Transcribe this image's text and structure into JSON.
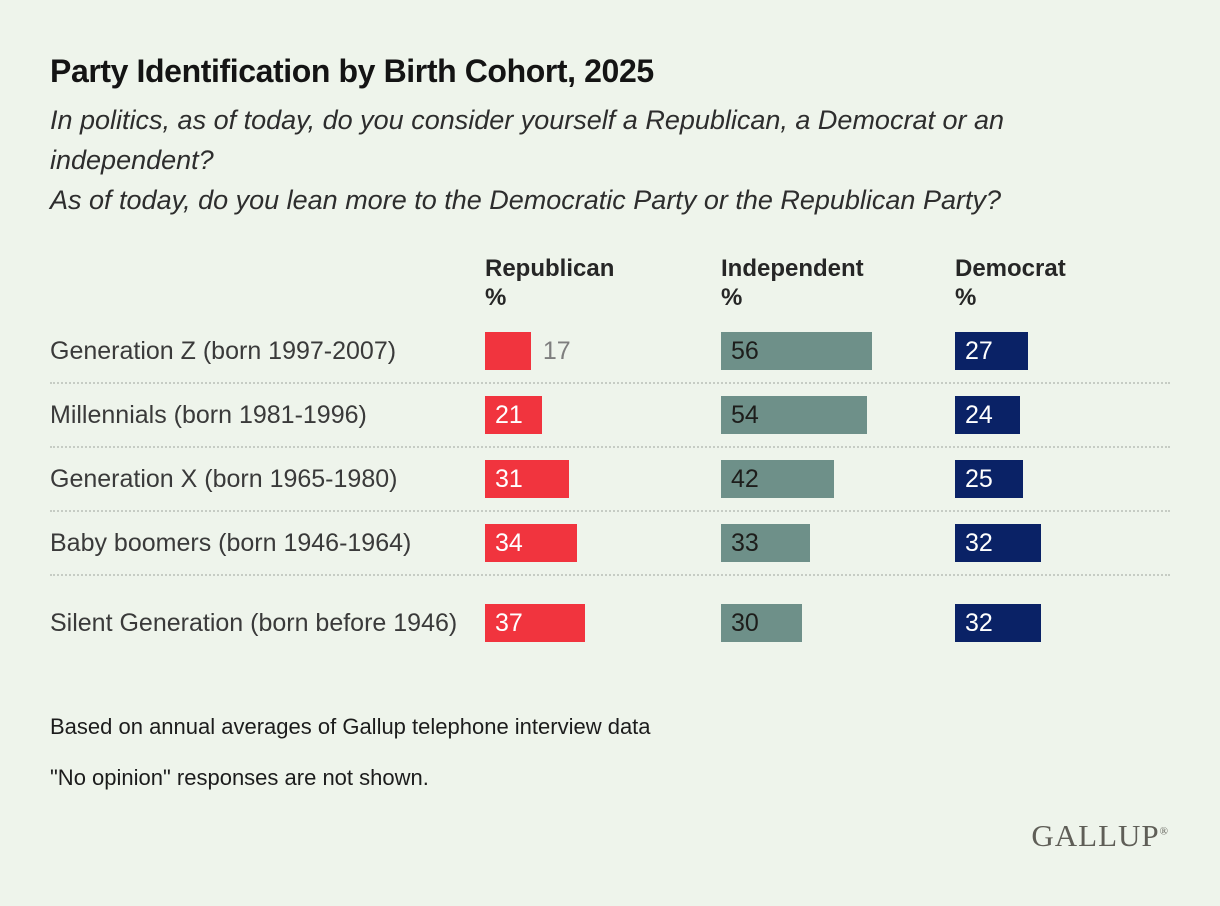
{
  "page": {
    "background_color": "#EEF4EB"
  },
  "header": {
    "title": "Party Identification by Birth Cohort, 2025",
    "questions": [
      "In politics, as of today, do you consider yourself a Republican, a Democrat or an independent?",
      "As of today, do you lean more to the Democratic Party or the Republican Party?"
    ]
  },
  "chart_data": {
    "type": "bar",
    "orientation": "horizontal",
    "unit": "%",
    "categories": [
      "Generation Z (born 1997-2007)",
      "Millennials (born 1981-1996)",
      "Generation X (born 1965-1980)",
      "Baby boomers (born 1946-1964)",
      "Silent Generation (born before 1946)"
    ],
    "series": [
      {
        "name": "Republican",
        "color": "#F1343E",
        "value_text_color": "#FFFFFF",
        "values": [
          17,
          21,
          31,
          34,
          37
        ]
      },
      {
        "name": "Independent",
        "color": "#6E9089",
        "value_text_color": "#1d1d1b",
        "values": [
          56,
          54,
          42,
          33,
          30
        ]
      },
      {
        "name": "Democrat",
        "color": "#0A2266",
        "value_text_color": "#FFFFFF",
        "values": [
          27,
          24,
          25,
          32,
          32
        ]
      }
    ],
    "xlim": [
      0,
      60
    ],
    "grid": false,
    "legend_position": "column-headers",
    "outside_label_color": "#7e7e7e",
    "separator_style": "dotted"
  },
  "footnotes": [
    "Based on annual averages of Gallup telephone interview data",
    "\"No opinion\" responses are not shown."
  ],
  "brand": {
    "name": "GALLUP",
    "registered_mark": "®"
  }
}
